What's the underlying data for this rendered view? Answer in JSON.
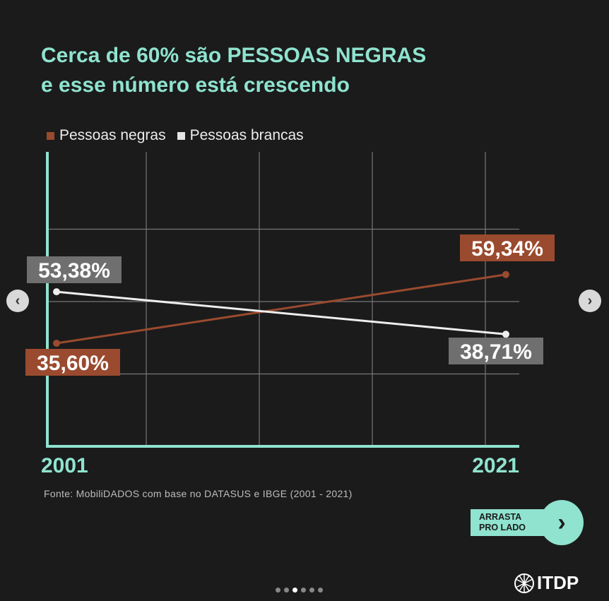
{
  "post": {
    "title_line1": "Cerca de 60% são PESSOAS NEGRAS",
    "title_line2": "e esse número está crescendo",
    "source": "Fonte: MobiliDADOS com base no DATASUS e IBGE (2001 - 2021)",
    "swipe_line1": "ARRASTA",
    "swipe_line2": "PRO LADO",
    "logo_text": "ITDP",
    "carousel_dots": 6,
    "active_dot": 2,
    "prev_icon": "chevron-left-icon",
    "next_icon": "chevron-right-icon"
  },
  "colors": {
    "background": "#1b1b1b",
    "accent": "#8fe3cf",
    "negras": "#9a4a2e",
    "brancas": "#eeeeee",
    "label_gray": "#6f6f6f"
  },
  "chart_data": {
    "type": "line",
    "title": "Cerca de 60% são PESSOAS NEGRAS e esse número está crescendo",
    "x": [
      2001,
      2021
    ],
    "tick_labels": [
      "2001",
      "2021"
    ],
    "ylim": [
      0,
      100
    ],
    "grid": true,
    "legend_position": "top-left",
    "series": [
      {
        "name": "Pessoas negras",
        "values": [
          35.6,
          59.34
        ],
        "labels": [
          "35,60%",
          "59,34%"
        ],
        "color": "#9a4a2e"
      },
      {
        "name": "Pessoas brancas",
        "values": [
          53.38,
          38.71
        ],
        "labels": [
          "53,38%",
          "38,71%"
        ],
        "color": "#eeeeee"
      }
    ]
  }
}
